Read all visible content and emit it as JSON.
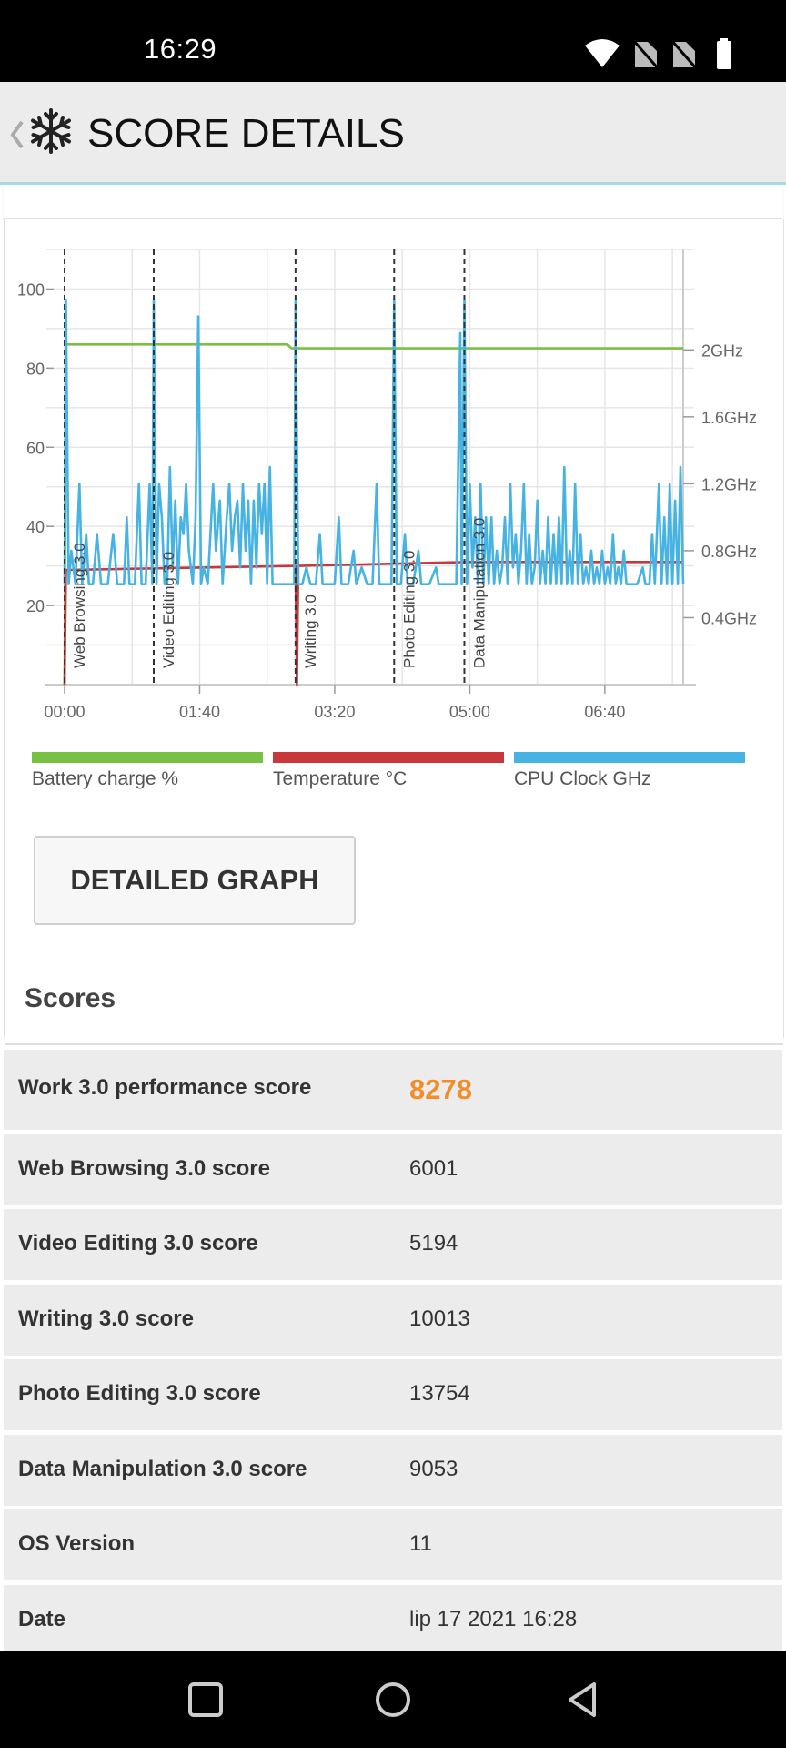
{
  "status": {
    "time": "16:29"
  },
  "app_bar": {
    "title": "SCORE DETAILS",
    "back_icon": "chevron-left-icon",
    "logo_icon": "snowflake-icon"
  },
  "colors": {
    "battery": "#79c143",
    "temperature": "#c8383a",
    "cpu": "#46b3e3",
    "accent_score": "#f28d2a",
    "marker": "#333333"
  },
  "chart_data": {
    "type": "line",
    "x_ticks": [
      "00:00",
      "01:40",
      "03:20",
      "05:00",
      "06:40"
    ],
    "x_range_seconds": [
      0,
      458
    ],
    "y_left_ticks": [
      "100",
      "80",
      "60",
      "40",
      "20"
    ],
    "y_left_range": [
      0,
      110
    ],
    "y_right_ticks": [
      "2GHz",
      "1.6GHz",
      "1.2GHz",
      "0.8GHz",
      "0.4GHz"
    ],
    "y_right_range_ghz": [
      0,
      2.6
    ],
    "grid": true,
    "markers": [
      {
        "label": "Web Browsing 3.0",
        "t": 0
      },
      {
        "label": "Video Editing 3.0",
        "t": 66
      },
      {
        "label": "Writing 3.0",
        "t": 171
      },
      {
        "label": "Photo Editing 3.0",
        "t": 244
      },
      {
        "label": "Data Manipulation 3.0",
        "t": 296
      }
    ],
    "series": [
      {
        "name": "Battery charge %",
        "axis": "left",
        "points": [
          [
            0,
            0
          ],
          [
            1,
            86
          ],
          [
            165,
            86
          ],
          [
            168,
            85
          ],
          [
            458,
            85
          ]
        ]
      },
      {
        "name": "Temperature °C",
        "axis": "left",
        "points": [
          [
            0,
            0
          ],
          [
            1,
            29
          ],
          [
            171,
            30
          ],
          [
            172,
            0
          ],
          [
            173,
            30
          ],
          [
            300,
            31
          ],
          [
            458,
            31
          ]
        ]
      },
      {
        "name": "CPU Clock GHz",
        "axis": "right",
        "points": [
          [
            0,
            0.6
          ],
          [
            1,
            2.3
          ],
          [
            3,
            0.6
          ],
          [
            5,
            0.8
          ],
          [
            8,
            0.6
          ],
          [
            11,
            1.2
          ],
          [
            13,
            0.6
          ],
          [
            16,
            0.9
          ],
          [
            18,
            0.6
          ],
          [
            21,
            0.6
          ],
          [
            24,
            0.9
          ],
          [
            27,
            0.6
          ],
          [
            32,
            0.6
          ],
          [
            36,
            0.9
          ],
          [
            39,
            0.6
          ],
          [
            44,
            0.6
          ],
          [
            46,
            1.0
          ],
          [
            48,
            0.6
          ],
          [
            52,
            0.6
          ],
          [
            55,
            1.2
          ],
          [
            57,
            0.6
          ],
          [
            60,
            0.6
          ],
          [
            63,
            1.2
          ],
          [
            65,
            0.6
          ],
          [
            66,
            2.3
          ],
          [
            68,
            0.6
          ],
          [
            70,
            1.2
          ],
          [
            72,
            1.0
          ],
          [
            74,
            0.6
          ],
          [
            76,
            0.6
          ],
          [
            78,
            1.3
          ],
          [
            80,
            0.7
          ],
          [
            82,
            1.1
          ],
          [
            84,
            0.6
          ],
          [
            86,
            1.0
          ],
          [
            88,
            0.9
          ],
          [
            90,
            1.2
          ],
          [
            92,
            0.8
          ],
          [
            95,
            0.6
          ],
          [
            97,
            1.0
          ],
          [
            99,
            2.2
          ],
          [
            101,
            0.6
          ],
          [
            103,
            0.7
          ],
          [
            106,
            0.6
          ],
          [
            110,
            1.2
          ],
          [
            112,
            0.8
          ],
          [
            115,
            1.1
          ],
          [
            117,
            0.6
          ],
          [
            120,
            1.0
          ],
          [
            122,
            1.2
          ],
          [
            124,
            0.8
          ],
          [
            126,
            1.0
          ],
          [
            128,
            1.1
          ],
          [
            130,
            0.7
          ],
          [
            132,
            1.2
          ],
          [
            134,
            0.8
          ],
          [
            136,
            1.1
          ],
          [
            138,
            0.6
          ],
          [
            140,
            1.1
          ],
          [
            142,
            0.7
          ],
          [
            144,
            1.2
          ],
          [
            146,
            0.9
          ],
          [
            148,
            1.2
          ],
          [
            150,
            0.6
          ],
          [
            152,
            1.3
          ],
          [
            154,
            0.6
          ],
          [
            157,
            0.6
          ],
          [
            160,
            0.6
          ],
          [
            164,
            0.6
          ],
          [
            167,
            0.6
          ],
          [
            170,
            0.6
          ],
          [
            171,
            2.3
          ],
          [
            173,
            0.6
          ],
          [
            176,
            0.6
          ],
          [
            179,
            0.7
          ],
          [
            182,
            0.6
          ],
          [
            186,
            0.6
          ],
          [
            189,
            0.9
          ],
          [
            191,
            0.6
          ],
          [
            196,
            0.6
          ],
          [
            200,
            0.6
          ],
          [
            203,
            1.0
          ],
          [
            205,
            0.6
          ],
          [
            210,
            0.6
          ],
          [
            214,
            0.8
          ],
          [
            216,
            0.6
          ],
          [
            220,
            0.7
          ],
          [
            224,
            0.6
          ],
          [
            228,
            0.6
          ],
          [
            231,
            1.2
          ],
          [
            233,
            0.6
          ],
          [
            238,
            0.6
          ],
          [
            242,
            0.6
          ],
          [
            244,
            2.3
          ],
          [
            246,
            0.6
          ],
          [
            249,
            0.6
          ],
          [
            252,
            0.9
          ],
          [
            254,
            0.6
          ],
          [
            258,
            0.6
          ],
          [
            262,
            0.8
          ],
          [
            264,
            0.6
          ],
          [
            270,
            0.6
          ],
          [
            275,
            0.7
          ],
          [
            277,
            0.6
          ],
          [
            282,
            0.6
          ],
          [
            286,
            0.6
          ],
          [
            290,
            0.6
          ],
          [
            293,
            2.1
          ],
          [
            294,
            0.6
          ],
          [
            296,
            2.3
          ],
          [
            298,
            0.6
          ],
          [
            300,
            1.2
          ],
          [
            302,
            0.7
          ],
          [
            304,
            1.0
          ],
          [
            306,
            0.6
          ],
          [
            308,
            1.2
          ],
          [
            310,
            0.6
          ],
          [
            312,
            1.0
          ],
          [
            314,
            0.6
          ],
          [
            316,
            1.0
          ],
          [
            318,
            0.6
          ],
          [
            320,
            0.8
          ],
          [
            322,
            0.6
          ],
          [
            324,
            0.7
          ],
          [
            326,
            1.0
          ],
          [
            328,
            0.6
          ],
          [
            330,
            1.2
          ],
          [
            332,
            0.7
          ],
          [
            334,
            0.9
          ],
          [
            336,
            0.6
          ],
          [
            338,
            0.8
          ],
          [
            340,
            1.2
          ],
          [
            342,
            0.6
          ],
          [
            344,
            0.9
          ],
          [
            346,
            0.6
          ],
          [
            348,
            0.7
          ],
          [
            350,
            1.1
          ],
          [
            352,
            0.6
          ],
          [
            354,
            0.8
          ],
          [
            356,
            0.6
          ],
          [
            358,
            1.0
          ],
          [
            360,
            0.6
          ],
          [
            362,
            0.9
          ],
          [
            364,
            0.6
          ],
          [
            366,
            1.0
          ],
          [
            368,
            0.6
          ],
          [
            370,
            1.3
          ],
          [
            372,
            0.6
          ],
          [
            374,
            0.8
          ],
          [
            376,
            0.6
          ],
          [
            378,
            1.2
          ],
          [
            380,
            0.6
          ],
          [
            382,
            0.9
          ],
          [
            384,
            0.6
          ],
          [
            386,
            0.7
          ],
          [
            388,
            0.6
          ],
          [
            390,
            0.8
          ],
          [
            392,
            0.6
          ],
          [
            394,
            0.7
          ],
          [
            396,
            0.6
          ],
          [
            398,
            0.8
          ],
          [
            400,
            0.6
          ],
          [
            402,
            0.7
          ],
          [
            404,
            0.6
          ],
          [
            406,
            0.9
          ],
          [
            408,
            0.6
          ],
          [
            410,
            0.7
          ],
          [
            412,
            0.6
          ],
          [
            414,
            0.8
          ],
          [
            416,
            0.6
          ],
          [
            418,
            0.6
          ],
          [
            420,
            0.6
          ],
          [
            424,
            0.6
          ],
          [
            428,
            0.7
          ],
          [
            430,
            0.6
          ],
          [
            433,
            0.6
          ],
          [
            435,
            0.9
          ],
          [
            437,
            0.6
          ],
          [
            440,
            1.2
          ],
          [
            442,
            0.6
          ],
          [
            444,
            1.0
          ],
          [
            446,
            0.6
          ],
          [
            448,
            1.2
          ],
          [
            450,
            0.6
          ],
          [
            452,
            1.1
          ],
          [
            454,
            0.6
          ],
          [
            456,
            1.3
          ],
          [
            458,
            0.6
          ]
        ]
      }
    ]
  },
  "legend": [
    {
      "label": "Battery charge %",
      "color": "#79c143"
    },
    {
      "label": "Temperature °C",
      "color": "#c8383a"
    },
    {
      "label": "CPU Clock GHz",
      "color": "#46b3e3"
    }
  ],
  "detailed_graph_button": "DETAILED GRAPH",
  "scores": {
    "title": "Scores",
    "rows": [
      {
        "label": "Work 3.0 performance score",
        "value": "8278"
      },
      {
        "label": "Web Browsing 3.0 score",
        "value": "6001"
      },
      {
        "label": "Video Editing 3.0 score",
        "value": "5194"
      },
      {
        "label": "Writing 3.0 score",
        "value": "10013"
      },
      {
        "label": "Photo Editing 3.0 score",
        "value": "13754"
      },
      {
        "label": "Data Manipulation 3.0 score",
        "value": "9053"
      },
      {
        "label": "OS Version",
        "value": "11"
      },
      {
        "label": "Date",
        "value": "lip 17 2021 16:28"
      }
    ]
  },
  "nav": {
    "recent": "square-icon",
    "home": "circle-icon",
    "back": "triangle-back-icon"
  }
}
